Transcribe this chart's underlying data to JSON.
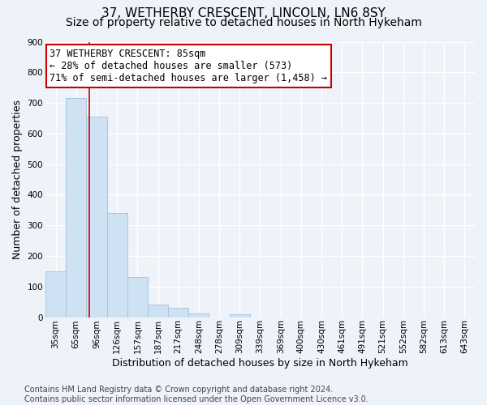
{
  "title": "37, WETHERBY CRESCENT, LINCOLN, LN6 8SY",
  "subtitle": "Size of property relative to detached houses in North Hykeham",
  "xlabel": "Distribution of detached houses by size in North Hykeham",
  "ylabel": "Number of detached properties",
  "categories": [
    "35sqm",
    "65sqm",
    "96sqm",
    "126sqm",
    "157sqm",
    "187sqm",
    "217sqm",
    "248sqm",
    "278sqm",
    "309sqm",
    "339sqm",
    "369sqm",
    "400sqm",
    "430sqm",
    "461sqm",
    "491sqm",
    "521sqm",
    "552sqm",
    "582sqm",
    "613sqm",
    "643sqm"
  ],
  "values": [
    150,
    715,
    655,
    340,
    130,
    42,
    30,
    13,
    0,
    10,
    0,
    0,
    0,
    0,
    0,
    0,
    0,
    0,
    0,
    0,
    0
  ],
  "bar_color": "#cfe2f3",
  "bar_edge_color": "#aac4e0",
  "property_line_color": "#cc0000",
  "annotation_line1": "37 WETHERBY CRESCENT: 85sqm",
  "annotation_line2": "← 28% of detached houses are smaller (573)",
  "annotation_line3": "71% of semi-detached houses are larger (1,458) →",
  "annotation_box_color": "#cc0000",
  "ylim": [
    0,
    900
  ],
  "yticks": [
    0,
    100,
    200,
    300,
    400,
    500,
    600,
    700,
    800,
    900
  ],
  "footnote": "Contains HM Land Registry data © Crown copyright and database right 2024.\nContains public sector information licensed under the Open Government Licence v3.0.",
  "bg_color": "#eef2f9",
  "plot_bg_color": "#eef2f9",
  "grid_color": "#ffffff",
  "title_fontsize": 11,
  "subtitle_fontsize": 10,
  "label_fontsize": 9,
  "tick_fontsize": 7.5,
  "footnote_fontsize": 7,
  "annotation_fontsize": 8.5
}
